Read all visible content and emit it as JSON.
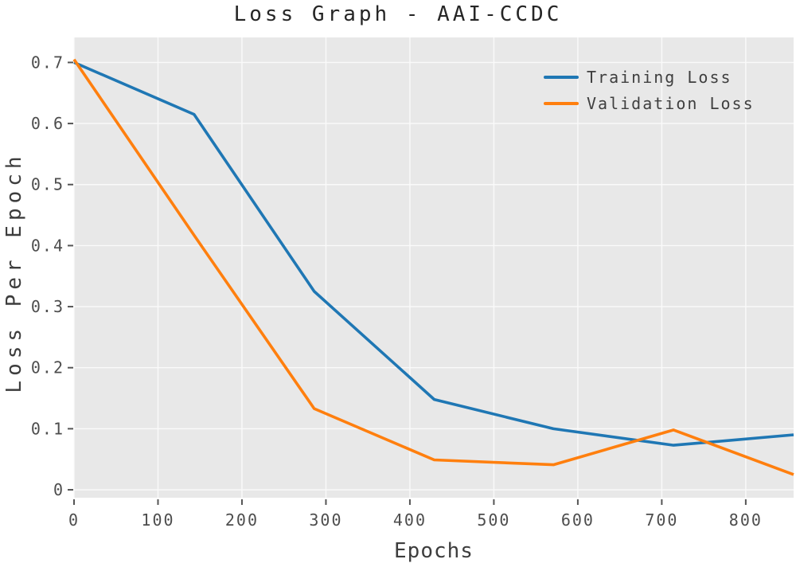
{
  "figure": {
    "background": "#ffffff",
    "plot_background": "#e8e8e8",
    "grid_color": "#fafafa",
    "tick_color": "#555555",
    "text_color": "#4d4d4d"
  },
  "legend": {
    "items": [
      {
        "label": "Training Loss",
        "color": "#1f77b4"
      },
      {
        "label": "Validation Loss",
        "color": "#ff7f0e"
      }
    ]
  },
  "chart_data": {
    "type": "line",
    "title": "Loss Graph - AAI-CCDC",
    "xlabel": "Epochs",
    "ylabel": "Loss Per Epoch",
    "xlim": [
      0,
      857
    ],
    "ylim": [
      -0.013,
      0.741
    ],
    "x_ticks": [
      0,
      100,
      200,
      300,
      400,
      500,
      600,
      700,
      800
    ],
    "x_tick_labels": [
      "0",
      "100",
      "200",
      "300",
      "400",
      "500",
      "600",
      "700",
      "800"
    ],
    "y_ticks": [
      0,
      0.1,
      0.2,
      0.3,
      0.4,
      0.5,
      0.6,
      0.7
    ],
    "y_tick_labels": [
      "0",
      "0.1",
      "0.2",
      "0.3",
      "0.4",
      "0.5",
      "0.6",
      "0.7"
    ],
    "grid": true,
    "legend_position": "upper right",
    "x": [
      0,
      143,
      286,
      429,
      571,
      714,
      857
    ],
    "series": [
      {
        "name": "Training Loss",
        "color": "#1f77b4",
        "values": [
          0.7,
          0.615,
          0.325,
          0.148,
          0.1,
          0.073,
          0.09
        ]
      },
      {
        "name": "Validation Loss",
        "color": "#ff7f0e",
        "values": [
          0.705,
          0.417,
          0.133,
          0.049,
          0.041,
          0.098,
          0.025
        ]
      }
    ]
  }
}
